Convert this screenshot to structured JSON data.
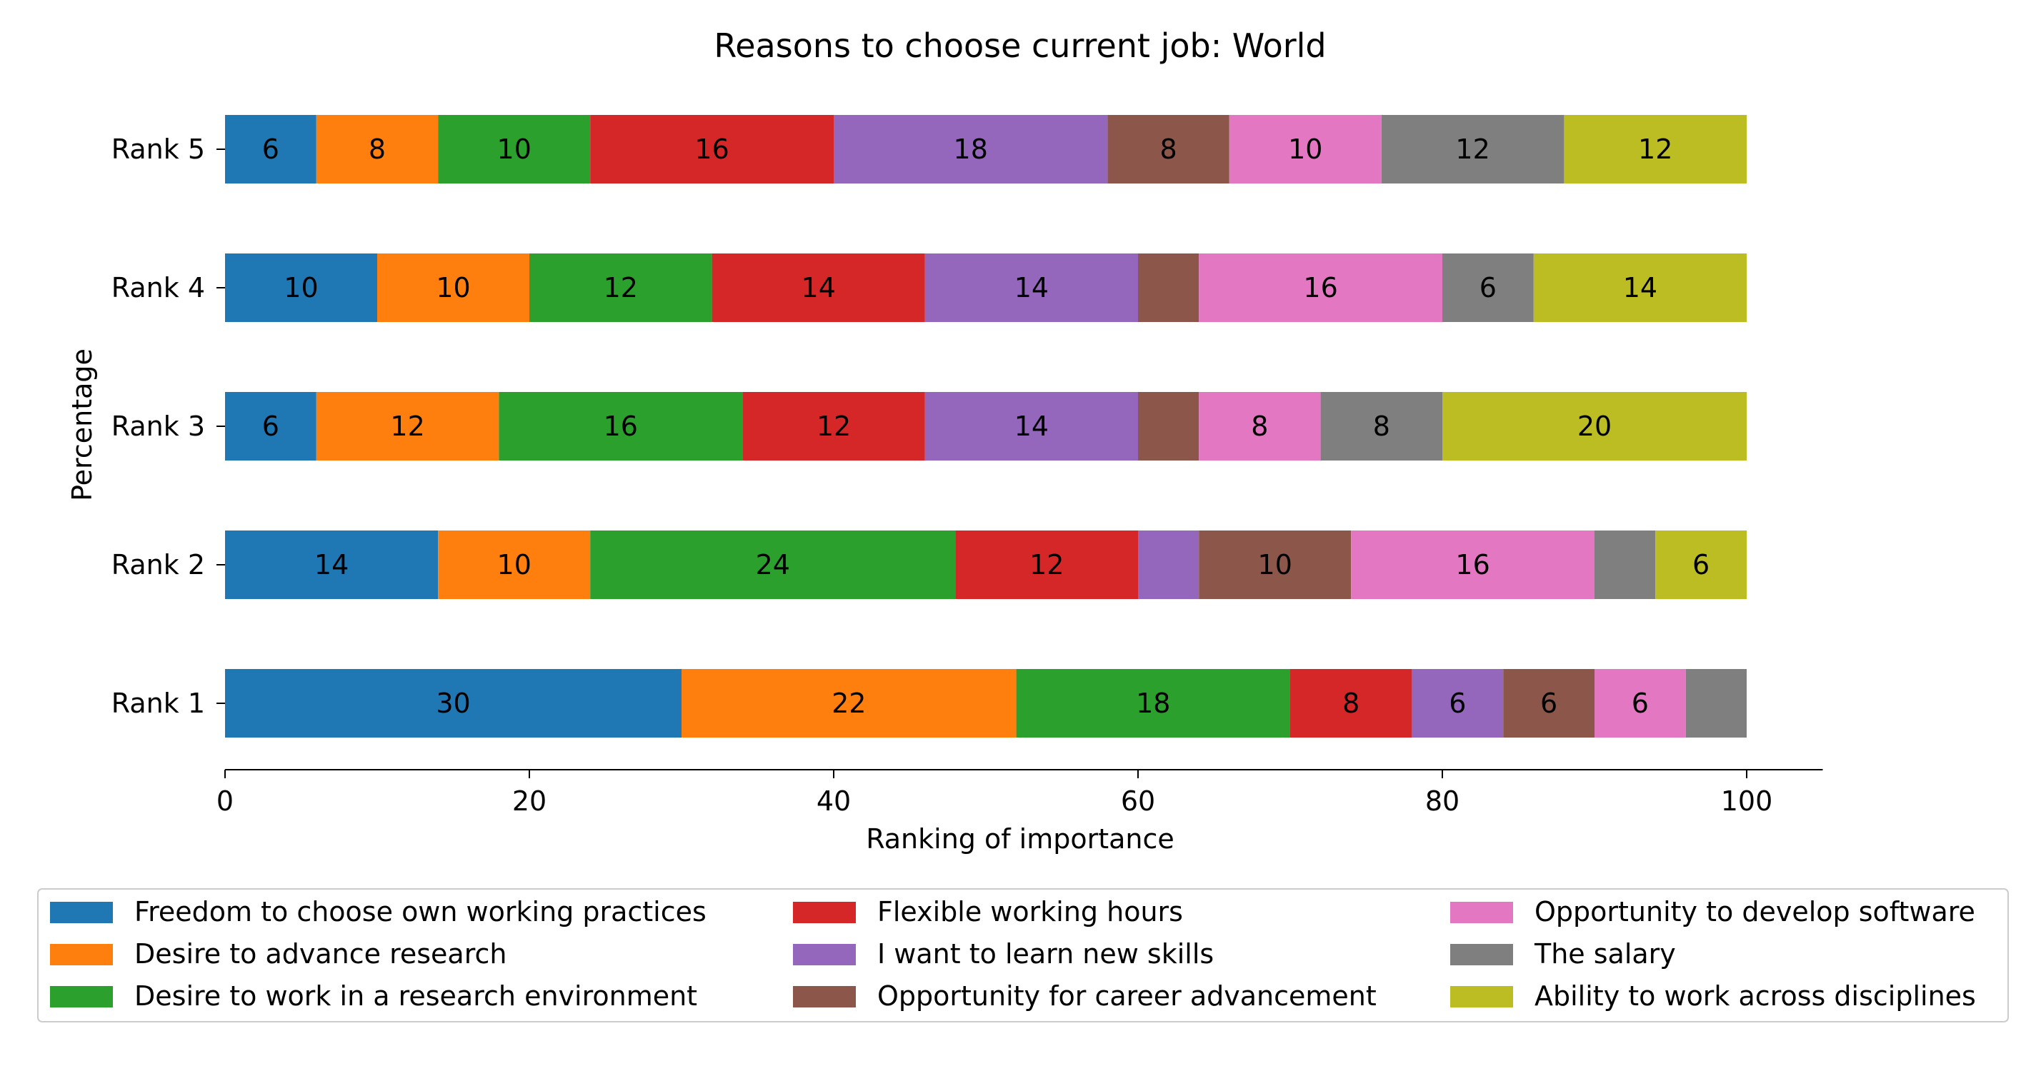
{
  "chart_data": {
    "type": "bar",
    "orientation": "horizontal",
    "stacked": true,
    "title": "Reasons to choose current job: World",
    "xlabel": "Ranking of importance",
    "ylabel": "Percentage",
    "xlim": [
      0,
      105
    ],
    "xticks": [
      "0",
      "20",
      "40",
      "60",
      "80",
      "100"
    ],
    "categories": [
      "Rank 1",
      "Rank 2",
      "Rank 3",
      "Rank 4",
      "Rank 5"
    ],
    "legend_position": "bottom",
    "grid": false,
    "series": [
      {
        "name": "Freedom to choose own working practices",
        "color": "#1f77b4",
        "values": [
          30,
          14,
          6,
          10,
          6
        ],
        "labels": [
          "30",
          "14",
          "6",
          "10",
          "6"
        ]
      },
      {
        "name": "Desire to advance research",
        "color": "#ff7f0e",
        "values": [
          22,
          10,
          12,
          10,
          8
        ],
        "labels": [
          "22",
          "10",
          "12",
          "10",
          "8"
        ]
      },
      {
        "name": "Desire to work in a research environment",
        "color": "#2ca02c",
        "values": [
          18,
          24,
          16,
          12,
          10
        ],
        "labels": [
          "18",
          "24",
          "16",
          "12",
          "10"
        ]
      },
      {
        "name": "Flexible working hours",
        "color": "#d62728",
        "values": [
          8,
          12,
          12,
          14,
          16
        ],
        "labels": [
          "8",
          "12",
          "12",
          "14",
          "16"
        ]
      },
      {
        "name": "I want to learn new skills",
        "color": "#9467bd",
        "values": [
          6,
          4,
          14,
          14,
          18
        ],
        "labels": [
          "6",
          "",
          "14",
          "14",
          "18"
        ]
      },
      {
        "name": "Opportunity for career advancement",
        "color": "#8c564b",
        "values": [
          6,
          10,
          4,
          4,
          8
        ],
        "labels": [
          "6",
          "10",
          "",
          "",
          "8"
        ]
      },
      {
        "name": "Opportunity to develop software",
        "color": "#e377c2",
        "values": [
          6,
          16,
          8,
          16,
          10
        ],
        "labels": [
          "6",
          "16",
          "8",
          "16",
          "10"
        ]
      },
      {
        "name": "The salary",
        "color": "#7f7f7f",
        "values": [
          4,
          4,
          8,
          6,
          12
        ],
        "labels": [
          "",
          "",
          "8",
          "6",
          "12"
        ]
      },
      {
        "name": "Ability to work across disciplines",
        "color": "#bcbd22",
        "values": [
          0,
          6,
          20,
          14,
          12
        ],
        "labels": [
          "",
          "6",
          "20",
          "14",
          "12"
        ]
      }
    ]
  }
}
